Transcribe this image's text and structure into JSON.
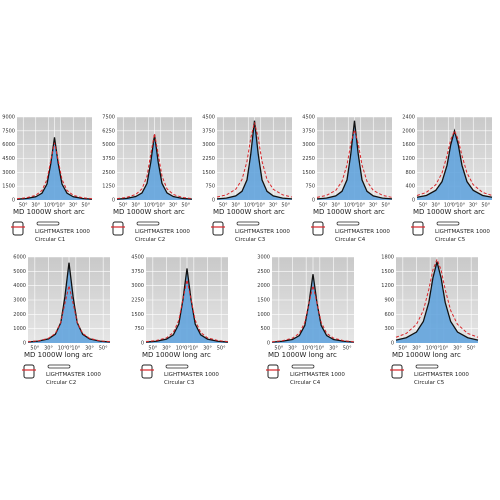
{
  "chart_data": [
    {
      "type": "line",
      "caption": "MD 1000W short arc",
      "model": "LIGHTMASTER 1000",
      "variant": "Circular C1",
      "x": [
        -60,
        -45,
        -30,
        -20,
        -12,
        -6,
        0,
        6,
        12,
        20,
        30,
        45,
        60
      ],
      "xlim": [
        -60,
        60
      ],
      "xticks": [
        {
          "value": -50,
          "label": "50°"
        },
        {
          "value": -30,
          "label": "30°"
        },
        {
          "value": -10,
          "label": "10°"
        },
        {
          "value": 0,
          "label": "0°"
        },
        {
          "value": 10,
          "label": "10°"
        },
        {
          "value": 30,
          "label": "30°"
        },
        {
          "value": 50,
          "label": "50°"
        }
      ],
      "ylim": [
        0,
        9000
      ],
      "yticks": [
        0,
        1500,
        3000,
        4500,
        6000,
        7500,
        9000
      ],
      "series": [
        {
          "color": "#111111",
          "style": "solid",
          "fill": "#5aa0dc",
          "values": [
            90,
            160,
            350,
            740,
            1730,
            3920,
            6800,
            3920,
            1730,
            740,
            350,
            160,
            90
          ]
        },
        {
          "color": "#d9262a",
          "style": "dashed",
          "values": [
            140,
            240,
            510,
            1040,
            2230,
            4280,
            6200,
            4280,
            2230,
            1040,
            510,
            240,
            140
          ]
        }
      ]
    },
    {
      "type": "line",
      "caption": "MD 1000W short arc",
      "model": "LIGHTMASTER 1000",
      "variant": "Circular C2",
      "x": [
        -60,
        -45,
        -30,
        -20,
        -12,
        -6,
        0,
        6,
        12,
        20,
        30,
        45,
        60
      ],
      "xlim": [
        -60,
        60
      ],
      "xticks": [
        {
          "value": -50,
          "label": "50°"
        },
        {
          "value": -30,
          "label": "30°"
        },
        {
          "value": -10,
          "label": "10°"
        },
        {
          "value": 0,
          "label": "0°"
        },
        {
          "value": 10,
          "label": "10°"
        },
        {
          "value": 30,
          "label": "30°"
        },
        {
          "value": 50,
          "label": "50°"
        }
      ],
      "ylim": [
        0,
        7500
      ],
      "yticks": [
        0,
        1250,
        2500,
        3750,
        5000,
        6250,
        7500
      ],
      "series": [
        {
          "color": "#111111",
          "style": "solid",
          "fill": "#5aa0dc",
          "values": [
            80,
            140,
            310,
            640,
            1500,
            3400,
            5900,
            3400,
            1500,
            640,
            310,
            140,
            80
          ]
        },
        {
          "color": "#d9262a",
          "style": "dashed",
          "values": [
            130,
            230,
            500,
            1010,
            2160,
            4140,
            6000,
            4140,
            2160,
            1010,
            500,
            230,
            130
          ]
        }
      ]
    },
    {
      "type": "line",
      "caption": "MD 1000W short arc",
      "model": "LIGHTMASTER 1000",
      "variant": "Circular C3",
      "x": [
        -60,
        -45,
        -30,
        -20,
        -12,
        -6,
        0,
        6,
        12,
        20,
        30,
        45,
        60
      ],
      "xlim": [
        -60,
        60
      ],
      "xticks": [
        {
          "value": -50,
          "label": "50°"
        },
        {
          "value": -30,
          "label": "30°"
        },
        {
          "value": -10,
          "label": "10°"
        },
        {
          "value": 0,
          "label": "0°"
        },
        {
          "value": 10,
          "label": "10°"
        },
        {
          "value": 30,
          "label": "30°"
        },
        {
          "value": 50,
          "label": "50°"
        }
      ],
      "ylim": [
        0,
        4500
      ],
      "yticks": [
        0,
        750,
        1500,
        2250,
        3000,
        3750,
        4500
      ],
      "series": [
        {
          "color": "#111111",
          "style": "solid",
          "fill": "#5aa0dc",
          "values": [
            60,
            100,
            220,
            470,
            1090,
            2480,
            4300,
            2480,
            1090,
            470,
            220,
            100,
            60
          ]
        },
        {
          "color": "#d9262a",
          "style": "dashed",
          "values": [
            160,
            280,
            580,
            1110,
            2100,
            3360,
            4200,
            3360,
            2100,
            1110,
            580,
            280,
            160
          ]
        }
      ]
    },
    {
      "type": "line",
      "caption": "MD 1000W short arc",
      "model": "LIGHTMASTER 1000",
      "variant": "Circular C4",
      "x": [
        -60,
        -45,
        -30,
        -20,
        -12,
        -6,
        0,
        6,
        12,
        20,
        30,
        45,
        60
      ],
      "xlim": [
        -60,
        60
      ],
      "xticks": [
        {
          "value": -50,
          "label": "50°"
        },
        {
          "value": -30,
          "label": "30°"
        },
        {
          "value": -10,
          "label": "10°"
        },
        {
          "value": 0,
          "label": "0°"
        },
        {
          "value": 10,
          "label": "10°"
        },
        {
          "value": 30,
          "label": "30°"
        },
        {
          "value": 50,
          "label": "50°"
        }
      ],
      "ylim": [
        0,
        4500
      ],
      "yticks": [
        0,
        750,
        1500,
        2250,
        3000,
        3750,
        4500
      ],
      "series": [
        {
          "color": "#111111",
          "style": "solid",
          "fill": "#5aa0dc",
          "values": [
            60,
            100,
            220,
            470,
            1090,
            2480,
            4300,
            2480,
            1090,
            470,
            220,
            100,
            60
          ]
        },
        {
          "color": "#d9262a",
          "style": "dashed",
          "values": [
            140,
            250,
            520,
            1010,
            1900,
            3040,
            3800,
            3040,
            1900,
            1010,
            520,
            250,
            140
          ]
        }
      ]
    },
    {
      "type": "line",
      "caption": "MD 1000W short arc",
      "model": "LIGHTMASTER 1000",
      "variant": "Circular C5",
      "x": [
        -60,
        -45,
        -30,
        -20,
        -12,
        -6,
        0,
        6,
        12,
        20,
        30,
        45,
        60
      ],
      "xlim": [
        -60,
        60
      ],
      "xticks": [
        {
          "value": -50,
          "label": "50°"
        },
        {
          "value": -30,
          "label": "30°"
        },
        {
          "value": -10,
          "label": "10°"
        },
        {
          "value": 0,
          "label": "0°"
        },
        {
          "value": 10,
          "label": "10°"
        },
        {
          "value": 30,
          "label": "30°"
        },
        {
          "value": 50,
          "label": "50°"
        }
      ],
      "ylim": [
        0,
        2400
      ],
      "yticks": [
        0,
        400,
        800,
        1200,
        1600,
        2000,
        2400
      ],
      "series": [
        {
          "color": "#111111",
          "style": "solid",
          "fill": "#5aa0dc",
          "values": [
            80,
            130,
            280,
            530,
            1000,
            1600,
            2000,
            1600,
            1000,
            530,
            280,
            130,
            80
          ]
        },
        {
          "color": "#d9262a",
          "style": "dashed",
          "values": [
            130,
            220,
            440,
            780,
            1280,
            1750,
            2000,
            1750,
            1280,
            780,
            440,
            220,
            130
          ]
        }
      ]
    },
    {
      "type": "line",
      "caption": "MD 1000W long arc",
      "model": "LIGHTMASTER 1000",
      "variant": "Circular C2",
      "x": [
        -60,
        -45,
        -30,
        -20,
        -12,
        -6,
        0,
        6,
        12,
        20,
        30,
        45,
        60
      ],
      "xlim": [
        -60,
        60
      ],
      "xticks": [
        {
          "value": -50,
          "label": "50°"
        },
        {
          "value": -30,
          "label": "30°"
        },
        {
          "value": -10,
          "label": "10°"
        },
        {
          "value": 0,
          "label": "0°"
        },
        {
          "value": 10,
          "label": "10°"
        },
        {
          "value": 30,
          "label": "30°"
        },
        {
          "value": 50,
          "label": "50°"
        }
      ],
      "ylim": [
        0,
        6000
      ],
      "yticks": [
        0,
        1000,
        2000,
        3000,
        4000,
        5000,
        6000
      ],
      "series": [
        {
          "color": "#111111",
          "style": "solid",
          "fill": "#5aa0dc",
          "values": [
            70,
            130,
            290,
            610,
            1420,
            3230,
            5600,
            3230,
            1420,
            610,
            290,
            130,
            70
          ]
        },
        {
          "color": "#d9262a",
          "style": "dashed",
          "values": [
            90,
            150,
            330,
            670,
            1440,
            2760,
            4000,
            2760,
            1440,
            670,
            330,
            150,
            90
          ]
        }
      ]
    },
    {
      "type": "line",
      "caption": "MD 1000W long arc",
      "model": "LIGHTMASTER 1000",
      "variant": "Circular C3",
      "x": [
        -60,
        -45,
        -30,
        -20,
        -12,
        -6,
        0,
        6,
        12,
        20,
        30,
        45,
        60
      ],
      "xlim": [
        -60,
        60
      ],
      "xticks": [
        {
          "value": -50,
          "label": "50°"
        },
        {
          "value": -30,
          "label": "30°"
        },
        {
          "value": -10,
          "label": "10°"
        },
        {
          "value": 0,
          "label": "0°"
        },
        {
          "value": 10,
          "label": "10°"
        },
        {
          "value": 30,
          "label": "30°"
        },
        {
          "value": 50,
          "label": "50°"
        }
      ],
      "ylim": [
        0,
        4500
      ],
      "yticks": [
        0,
        750,
        1500,
        2250,
        3000,
        3750,
        4500
      ],
      "series": [
        {
          "color": "#111111",
          "style": "solid",
          "fill": "#5aa0dc",
          "values": [
            50,
            90,
            200,
            430,
            990,
            2250,
            3900,
            2250,
            990,
            430,
            200,
            90,
            50
          ]
        },
        {
          "color": "#d9262a",
          "style": "dashed",
          "values": [
            70,
            130,
            270,
            550,
            1190,
            2280,
            3300,
            2280,
            1190,
            550,
            270,
            130,
            70
          ]
        }
      ]
    },
    {
      "type": "line",
      "caption": "MD 1000W long arc",
      "model": "LIGHTMASTER 1000",
      "variant": "Circular C4",
      "x": [
        -60,
        -45,
        -30,
        -20,
        -12,
        -6,
        0,
        6,
        12,
        20,
        30,
        45,
        60
      ],
      "xlim": [
        -60,
        60
      ],
      "xticks": [
        {
          "value": -50,
          "label": "50°"
        },
        {
          "value": -30,
          "label": "30°"
        },
        {
          "value": -10,
          "label": "10°"
        },
        {
          "value": 0,
          "label": "0°"
        },
        {
          "value": 10,
          "label": "10°"
        },
        {
          "value": 30,
          "label": "30°"
        },
        {
          "value": 50,
          "label": "50°"
        }
      ],
      "ylim": [
        0,
        3000
      ],
      "yticks": [
        0,
        500,
        1000,
        1500,
        2000,
        2500,
        3000
      ],
      "series": [
        {
          "color": "#111111",
          "style": "solid",
          "fill": "#5aa0dc",
          "values": [
            30,
            60,
            120,
            260,
            610,
            1380,
            2400,
            1380,
            610,
            260,
            120,
            60,
            30
          ]
        },
        {
          "color": "#d9262a",
          "style": "dashed",
          "values": [
            40,
            80,
            170,
            340,
            720,
            1380,
            2000,
            1380,
            720,
            340,
            170,
            80,
            40
          ]
        }
      ]
    },
    {
      "type": "line",
      "caption": "MD 1000W long arc",
      "model": "LIGHTMASTER 1000",
      "variant": "Circular C5",
      "x": [
        -60,
        -45,
        -30,
        -20,
        -12,
        -6,
        0,
        6,
        12,
        20,
        30,
        45,
        60
      ],
      "xlim": [
        -60,
        60
      ],
      "xticks": [
        {
          "value": -50,
          "label": "50°"
        },
        {
          "value": -30,
          "label": "30°"
        },
        {
          "value": -10,
          "label": "10°"
        },
        {
          "value": 0,
          "label": "0°"
        },
        {
          "value": 10,
          "label": "10°"
        },
        {
          "value": 30,
          "label": "30°"
        },
        {
          "value": 50,
          "label": "50°"
        }
      ],
      "ylim": [
        0,
        1800
      ],
      "yticks": [
        0,
        300,
        600,
        900,
        1200,
        1500,
        1800
      ],
      "series": [
        {
          "color": "#111111",
          "style": "solid",
          "fill": "#5aa0dc",
          "values": [
            60,
            110,
            230,
            450,
            850,
            1360,
            1700,
            1360,
            850,
            450,
            230,
            110,
            60
          ]
        },
        {
          "color": "#d9262a",
          "style": "dashed",
          "values": [
            120,
            200,
            390,
            680,
            1120,
            1530,
            1750,
            1530,
            1120,
            680,
            390,
            200,
            120
          ]
        }
      ]
    }
  ]
}
